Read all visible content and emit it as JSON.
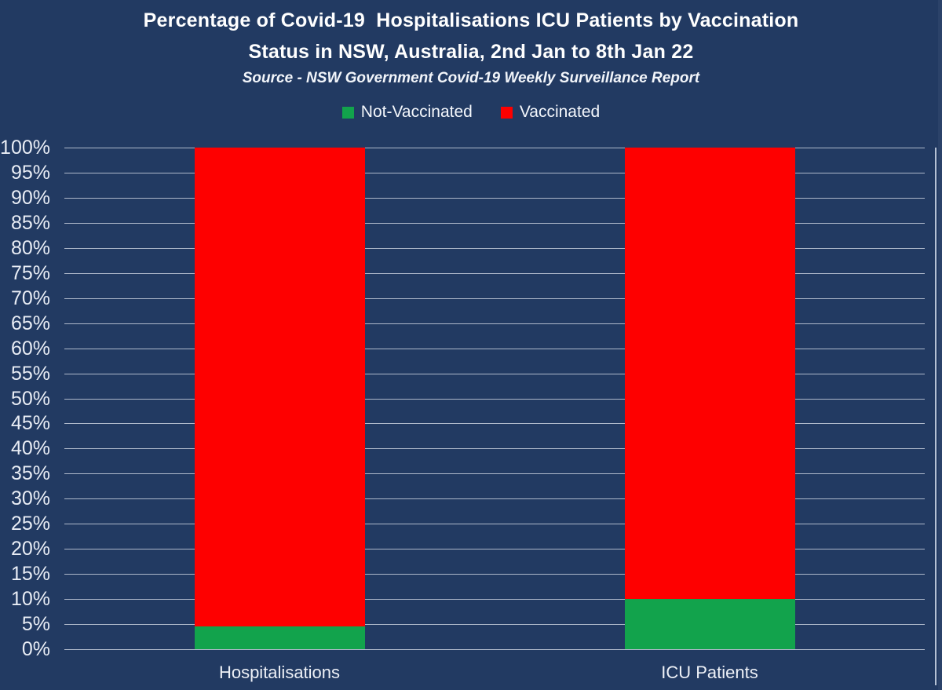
{
  "title": {
    "line1": "Percentage of Covid-19  Hospitalisations ICU Patients by Vaccination",
    "line2": "Status in NSW, Australia, 2nd Jan to 8th Jan 22"
  },
  "source": "Source - NSW Government Covid-19 Weekly Surveillance Report",
  "colors": {
    "background": "#223a62",
    "gridline": "#c7cfdd",
    "axis_text": "#e9edf5",
    "title_text": "#ffffff",
    "not_vaccinated": "#12a34c",
    "vaccinated": "#fe0000",
    "right_border": "#b5c1d4",
    "right_edge_strip": "#2b4269"
  },
  "chart_data": {
    "type": "bar",
    "stacked": true,
    "percent_stacked": true,
    "title": "Percentage of Covid-19  Hospitalisations ICU Patients by Vaccination Status in NSW, Australia, 2nd Jan to 8th Jan 22",
    "subtitle": "Source - NSW Government Covid-19 Weekly Surveillance Report",
    "categories": [
      "Hospitalisations",
      "ICU Patients"
    ],
    "series": [
      {
        "name": "Not-Vaccinated",
        "color": "#12a34c",
        "values": [
          4.5,
          10
        ]
      },
      {
        "name": "Vaccinated",
        "color": "#fe0000",
        "values": [
          95.5,
          90
        ]
      }
    ],
    "xlabel": "",
    "ylabel": "",
    "ylim": [
      0,
      100
    ],
    "ytick_step": 5,
    "ytick_suffix": "%",
    "grid": true,
    "legend_position": "top"
  }
}
